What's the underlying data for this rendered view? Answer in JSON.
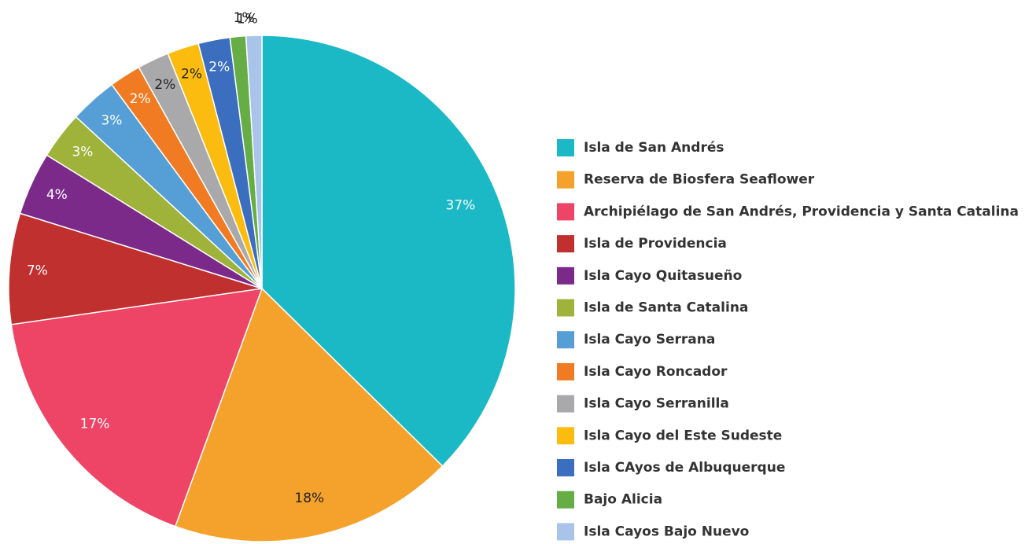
{
  "chart_data": {
    "type": "pie",
    "categories": [
      "Isla de San Andrés",
      "Reserva de Biosfera Seaflower",
      "Archipiélago de San Andrés, Providencia y Santa Catalina",
      "Isla de Providencia",
      "Isla Cayo Quitasueño",
      "Isla de Santa Catalina",
      "Isla Cayo Serrana",
      "Isla Cayo Roncador",
      "Isla Cayo Serranilla",
      "Isla Cayo del Este Sudeste",
      "Isla CAyos de Albuquerque",
      "Bajo Alicia",
      "Isla Cayos Bajo Nuevo"
    ],
    "values": [
      37,
      18,
      17,
      7,
      4,
      3,
      3,
      2,
      2,
      2,
      2,
      1,
      1
    ],
    "value_labels": [
      "37%",
      "18%",
      "17%",
      "7%",
      "4%",
      "3%",
      "3%",
      "2%",
      "2%",
      "2%",
      "2%",
      "1%",
      "1%"
    ],
    "colors": [
      "#1bb8c6",
      "#f5a22d",
      "#ee4466",
      "#c0302f",
      "#7b2a8a",
      "#9fb23a",
      "#559fd6",
      "#f07b22",
      "#a9a9ab",
      "#fbbc0f",
      "#3c6ebf",
      "#66ad45",
      "#a9c4ea"
    ],
    "legend": "right"
  }
}
